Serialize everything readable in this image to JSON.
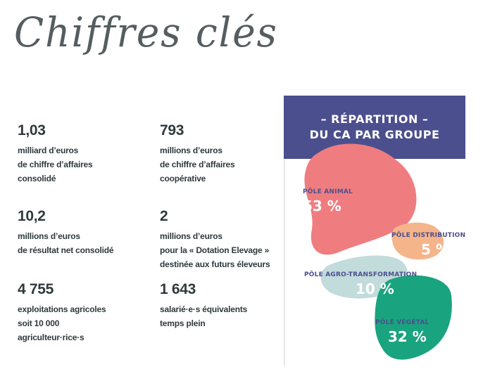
{
  "title": "Chiffres clés",
  "stats": [
    {
      "value": "1,03",
      "lines": [
        "milliard d’euros",
        "de chiffre d’affaires",
        "consolidé"
      ]
    },
    {
      "value": "793",
      "lines": [
        "millions d’euros",
        "de chiffre d’affaires",
        "coopérative"
      ]
    },
    {
      "value": "10,2",
      "lines": [
        "millions d’euros",
        "de résultat net consolidé"
      ]
    },
    {
      "value": "2",
      "lines": [
        "millions d’euros",
        "pour la « Dotation Elevage »",
        "destinée aux futurs éleveurs"
      ]
    },
    {
      "value": "4 755",
      "lines": [
        "exploitations agricoles",
        "soit 10 000",
        "agriculteur·rice·s"
      ]
    },
    {
      "value": "1 643",
      "lines": [
        "salarié·e·s équivalents",
        "temps plein"
      ]
    }
  ],
  "infographic": {
    "title_line1": "– RÉPARTITION –",
    "title_line2": "DU CA PAR GROUPE",
    "colors": {
      "header": "#4b4f8e",
      "animal": "#ef7d80",
      "distribution": "#f6b48a",
      "agro": "#c2dbdb",
      "vegetal": "#1aa37f"
    },
    "poles": [
      {
        "name": "PÔLE ANIMAL",
        "pct": "53 %",
        "share": 53
      },
      {
        "name": "PÔLE DISTRIBUTION",
        "pct": "5 %",
        "share": 5
      },
      {
        "name": "PÔLE AGRO-TRANSFORMATION",
        "pct": "10 %",
        "share": 10
      },
      {
        "name": "PÔLE VÉGÉTAL",
        "pct": "32 %",
        "share": 32
      }
    ]
  }
}
